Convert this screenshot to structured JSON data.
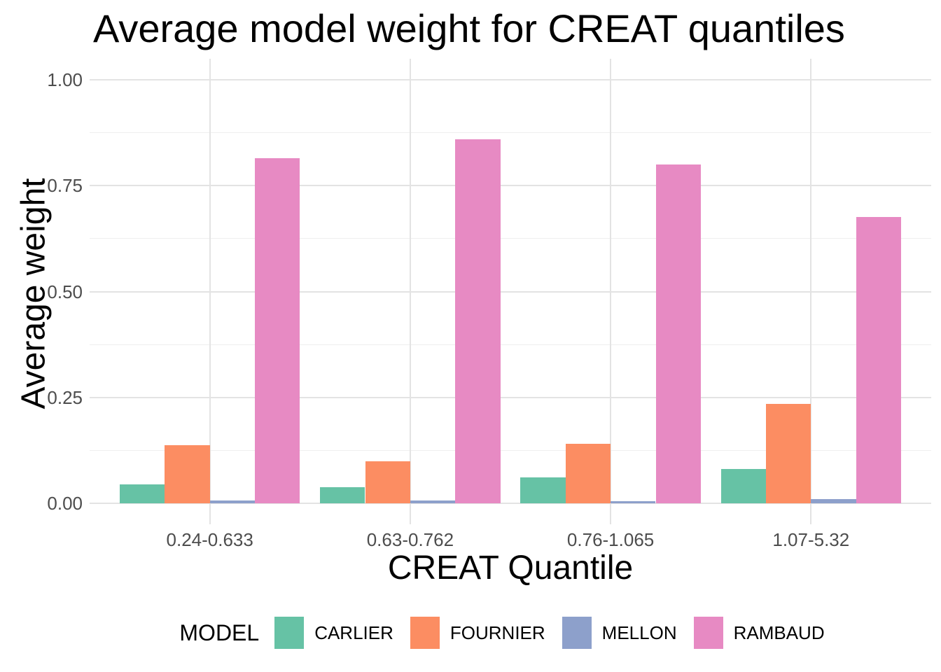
{
  "chart_data": {
    "type": "bar",
    "title": "Average model weight for CREAT quantiles",
    "xlabel": "CREAT Quantile",
    "ylabel": "Average weight",
    "legend_title": "MODEL",
    "legend_position": "bottom",
    "grid": true,
    "categories": [
      "0.24-0.633",
      "0.63-0.762",
      "0.76-1.065",
      "1.07-5.32"
    ],
    "series": [
      {
        "name": "CARLIER",
        "color": "#66C2A5",
        "values": [
          0.044,
          0.038,
          0.061,
          0.081
        ]
      },
      {
        "name": "FOURNIER",
        "color": "#FC8D62",
        "values": [
          0.137,
          0.099,
          0.14,
          0.234
        ]
      },
      {
        "name": "MELLON",
        "color": "#8DA0CB",
        "values": [
          0.006,
          0.006,
          0.005,
          0.009
        ]
      },
      {
        "name": "RAMBAUD",
        "color": "#E78AC3",
        "values": [
          0.816,
          0.86,
          0.8,
          0.677
        ]
      }
    ],
    "ylim": [
      -0.05,
      1.05
    ],
    "yticks": [
      0.0,
      0.25,
      0.5,
      0.75,
      1.0
    ],
    "ytick_labels": [
      "0.00",
      "0.25",
      "0.50",
      "0.75",
      "1.00"
    ],
    "minor_yticks": [
      0.125,
      0.375,
      0.625,
      0.875
    ],
    "bar_dodge_fraction": 0.9,
    "background_color": "#ffffff",
    "major_grid_color": "#e3e3e3",
    "minor_grid_color": "#efefef",
    "tick_label_color": "#4d4d4d"
  }
}
